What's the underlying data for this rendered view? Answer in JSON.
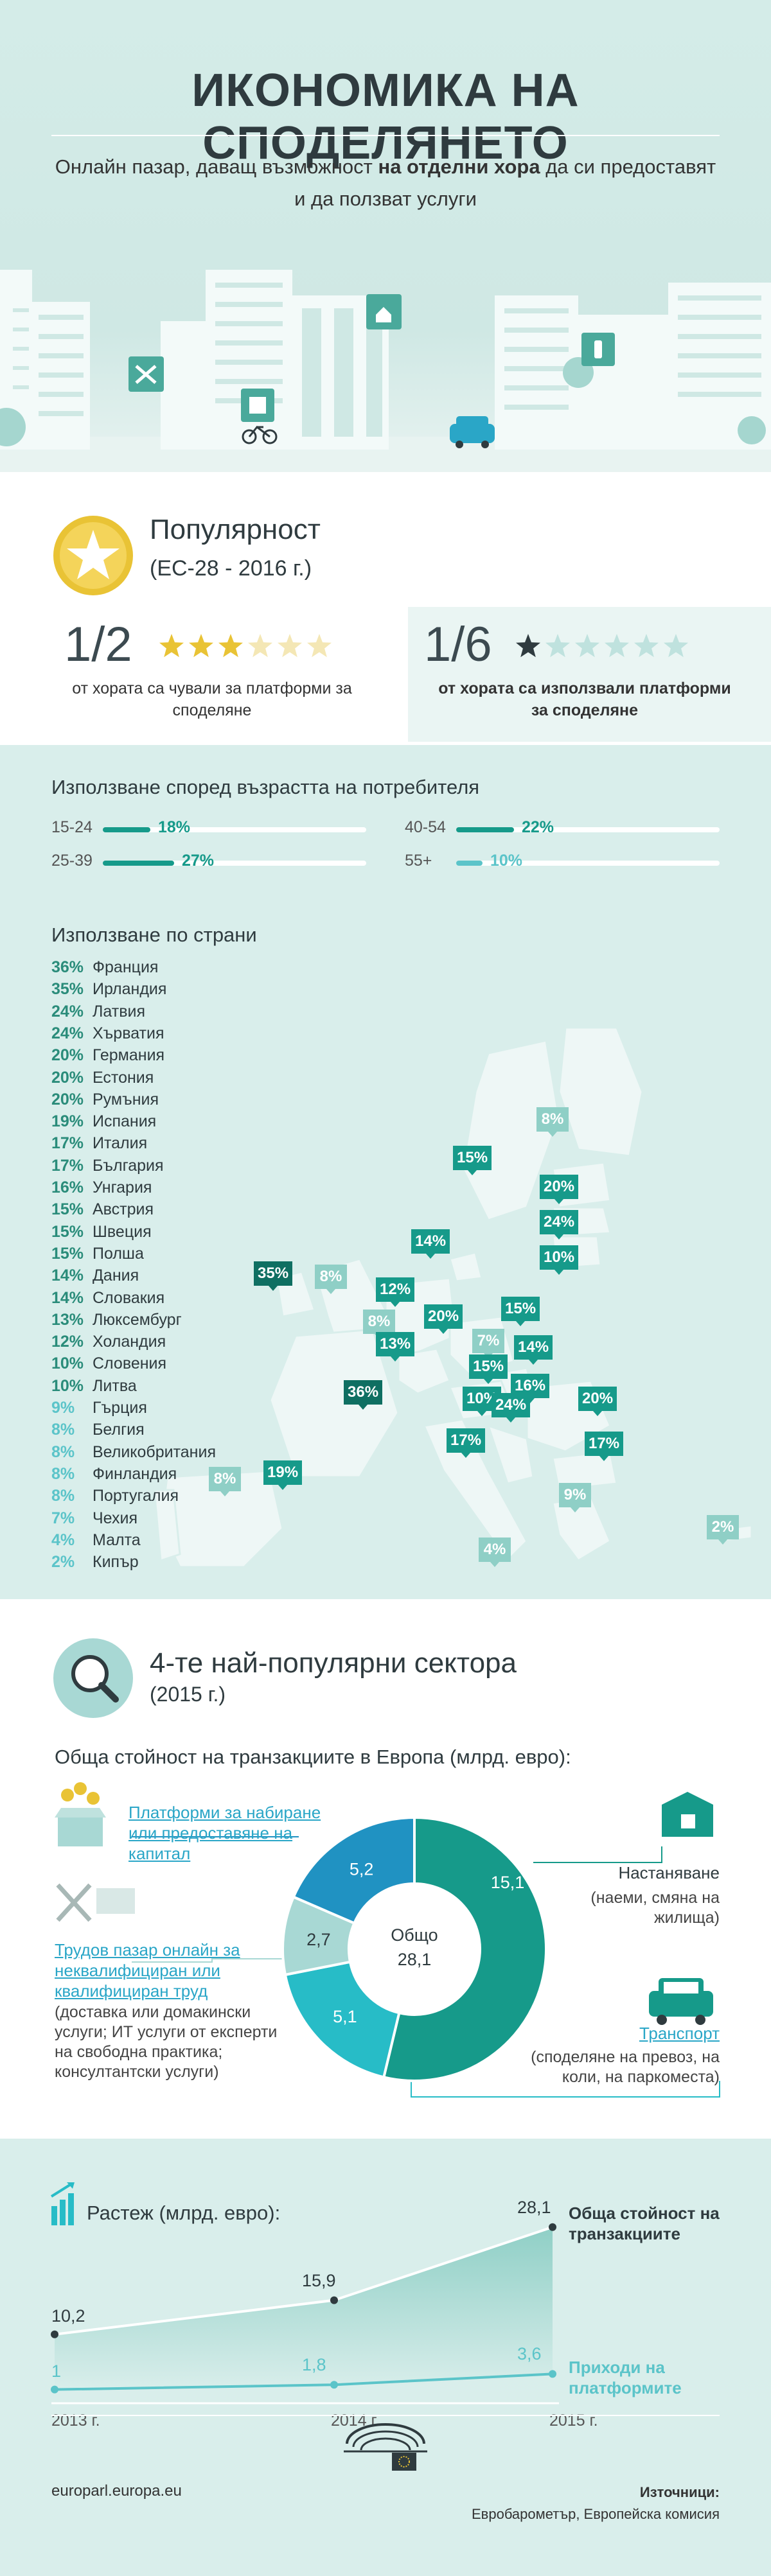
{
  "header": {
    "title": "ИКОНОМИКА НА СПОДЕЛЯНЕТО",
    "subtitle_pre": "Онлайн пазар, даващ възможност ",
    "subtitle_bold": "на отделни хора",
    "subtitle_post": " да си предоставят и да ползват услуги"
  },
  "popularity": {
    "title": "Популярност",
    "subtitle": "(ЕС-28 - 2016 г.)",
    "stat_left": {
      "fraction": "1/2",
      "text": "от хората са чували за платформи за споделяне",
      "stars_filled": 3,
      "stars_total": 6
    },
    "stat_right": {
      "fraction": "1/6",
      "text": "от хората са използвали платформи за споделяне",
      "stars_filled": 1,
      "stars_total": 6
    }
  },
  "age": {
    "title": "Използване според възрастта на потребителя",
    "groups": [
      {
        "label": "15-24",
        "value": 18,
        "display": "18%"
      },
      {
        "label": "25-39",
        "value": 27,
        "display": "27%"
      },
      {
        "label": "40-54",
        "value": 22,
        "display": "22%"
      },
      {
        "label": "55+",
        "value": 10,
        "display": "10%"
      }
    ]
  },
  "countries": {
    "title": "Използване по страни",
    "list": [
      {
        "pct": "36%",
        "name": "Франция"
      },
      {
        "pct": "35%",
        "name": "Ирландия"
      },
      {
        "pct": "24%",
        "name": "Латвия"
      },
      {
        "pct": "24%",
        "name": "Хърватия"
      },
      {
        "pct": "20%",
        "name": "Германия"
      },
      {
        "pct": "20%",
        "name": "Естония"
      },
      {
        "pct": "20%",
        "name": "Румъния"
      },
      {
        "pct": "19%",
        "name": "Испания"
      },
      {
        "pct": "17%",
        "name": "Италия"
      },
      {
        "pct": "17%",
        "name": "България"
      },
      {
        "pct": "16%",
        "name": "Унгария"
      },
      {
        "pct": "15%",
        "name": "Австрия"
      },
      {
        "pct": "15%",
        "name": "Швеция"
      },
      {
        "pct": "15%",
        "name": "Полша"
      },
      {
        "pct": "14%",
        "name": "Дания"
      },
      {
        "pct": "14%",
        "name": "Словакия"
      },
      {
        "pct": "13%",
        "name": "Люксембург"
      },
      {
        "pct": "12%",
        "name": "Холандия"
      },
      {
        "pct": "10%",
        "name": "Словения"
      },
      {
        "pct": "10%",
        "name": "Литва"
      },
      {
        "pct": "9%",
        "name": "Гърция"
      },
      {
        "pct": "8%",
        "name": "Белгия"
      },
      {
        "pct": "8%",
        "name": "Великобритания"
      },
      {
        "pct": "8%",
        "name": "Финландия"
      },
      {
        "pct": "8%",
        "name": "Португалия"
      },
      {
        "pct": "7%",
        "name": "Чехия"
      },
      {
        "pct": "4%",
        "name": "Малта"
      },
      {
        "pct": "2%",
        "name": "Кипър"
      }
    ],
    "map_tags": {
      "fi": "8%",
      "se": "15%",
      "ee": "20%",
      "lv": "24%",
      "lt": "10%",
      "dk": "14%",
      "ie": "35%",
      "uk": "8%",
      "nl": "12%",
      "be": "8%",
      "de": "20%",
      "pl": "15%",
      "lu": "13%",
      "cz": "7%",
      "sk": "14%",
      "at": "15%",
      "si": "10%",
      "hu": "16%",
      "hr": "24%",
      "ro": "20%",
      "fr": "36%",
      "it": "17%",
      "bg": "17%",
      "pt": "8%",
      "es": "19%",
      "gr": "9%",
      "mt": "4%",
      "cy": "2%"
    }
  },
  "sectors": {
    "title": "4-те най-популярни сектора",
    "subtitle": "(2015 г.)",
    "donut_title": "Обща стойност на транзакциите в Европа (млрд. евро):",
    "center_label": "Общо",
    "center_value": "28,1",
    "labels": {
      "capital": "Платформи за набиране или предоставяне на капитал",
      "labour": "Трудов пазар онлайн за неквалифициран или квалифициран труд",
      "labour_desc": "(доставка или домакински услуги; ИТ услуги от експерти на свободна практика; консултантски услуги)",
      "housing": "Настаняване",
      "housing_desc": "(наеми, смяна на жилища)",
      "transport": "Транспорт",
      "transport_desc": "(споделяне на превоз, на коли, на паркоместа)"
    }
  },
  "chart_data": [
    {
      "type": "bar",
      "title": "Използване според възрастта на потребителя",
      "categories": [
        "15-24",
        "25-39",
        "40-54",
        "55+"
      ],
      "values": [
        18,
        27,
        22,
        10
      ],
      "ylim": [
        0,
        100
      ]
    },
    {
      "type": "pie",
      "title": "Обща стойност на транзакциите в Европа (млрд. евро):",
      "categories": [
        "Настаняване",
        "Транспорт",
        "Трудов пазар онлайн",
        "Платформи за набиране или предоставяне на капитал"
      ],
      "values": [
        15.1,
        5.1,
        2.7,
        5.2
      ],
      "value_labels": [
        "15,1",
        "5,1",
        "2,7",
        "5,2"
      ],
      "colors": [
        "#169a8a",
        "#27bcc7",
        "#a8d8d4",
        "#2092c2"
      ],
      "total": "28,1"
    },
    {
      "type": "line",
      "title": "Растеж (млрд. евро):",
      "x": [
        "2013 г.",
        "2014 г.",
        "2015 г."
      ],
      "series": [
        {
          "name": "Обща стойност на транзакциите",
          "values": [
            10.2,
            15.9,
            28.1
          ],
          "labels": [
            "10,2",
            "15,9",
            "28,1"
          ]
        },
        {
          "name": "Приходи на платформите",
          "values": [
            1.0,
            1.8,
            3.6
          ],
          "labels": [
            "1",
            "1,8",
            "3,6"
          ]
        }
      ],
      "ylim": [
        0,
        30
      ]
    }
  ],
  "colors": {
    "teal_dark": "#169a8a",
    "teal": "#27bcc7",
    "teal_light": "#a8d8d4",
    "blue": "#2092c2",
    "star": "#e9c335",
    "mint_bg": "#d9eeeb"
  },
  "footer": {
    "url": "europarl.europa.eu",
    "sources_label": "Източници:",
    "sources": "Евробарометър, Европейска комисия"
  }
}
